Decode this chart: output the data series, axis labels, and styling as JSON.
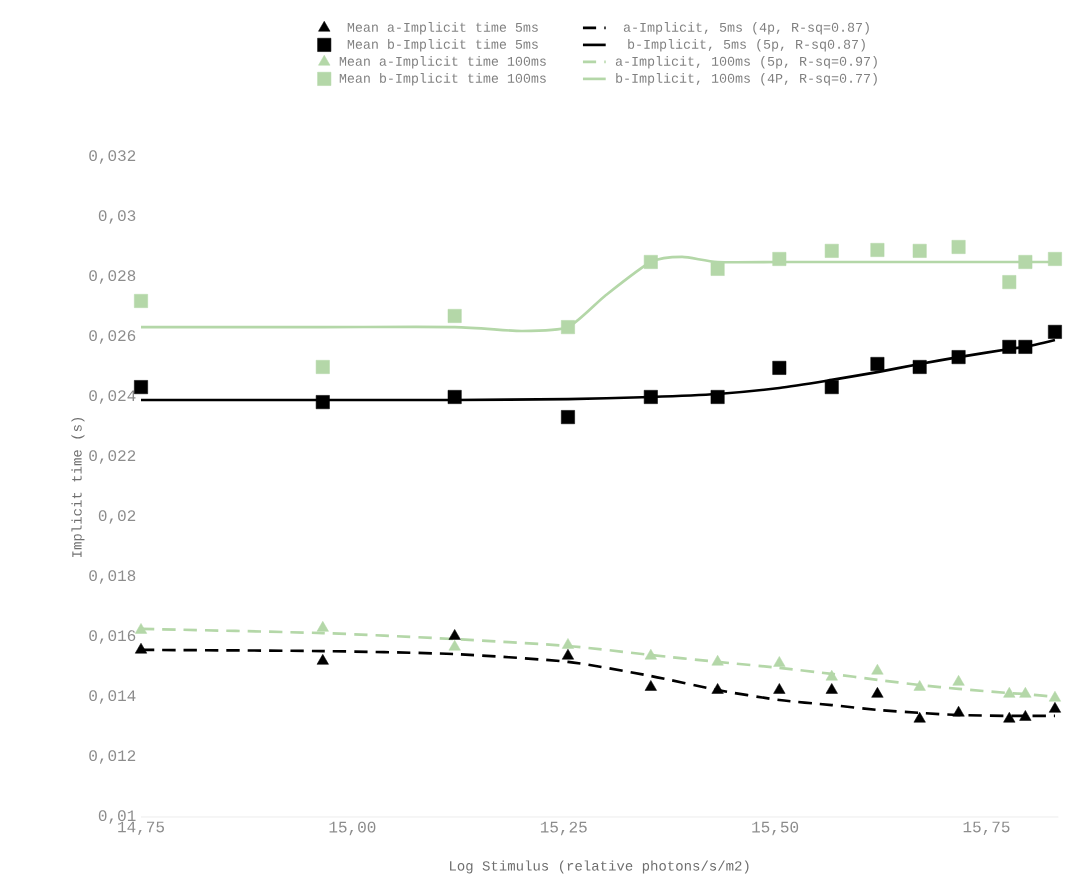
{
  "chart_data": {
    "type": "scatter",
    "xlabel": "Log Stimulus (relative photons/s/m2)",
    "ylabel": "Implicit time (s)",
    "x": [
      14.75,
      14.965,
      15.121,
      15.255,
      15.353,
      15.432,
      15.505,
      15.567,
      15.621,
      15.671,
      15.717,
      15.777,
      15.796,
      15.831
    ],
    "xlim": [
      14.75,
      15.835
    ],
    "ylim": [
      0.01,
      0.032
    ],
    "xticks": [
      {
        "value": 14.75,
        "label": "14,75"
      },
      {
        "value": 15.0,
        "label": "15,00"
      },
      {
        "value": 15.25,
        "label": "15,25"
      },
      {
        "value": 15.5,
        "label": "15,50"
      },
      {
        "value": 15.75,
        "label": "15,75"
      }
    ],
    "yticks": [
      {
        "value": 0.01,
        "label": "0,01"
      },
      {
        "value": 0.012,
        "label": "0,012"
      },
      {
        "value": 0.014,
        "label": "0,014"
      },
      {
        "value": 0.016,
        "label": "0,016"
      },
      {
        "value": 0.018,
        "label": "0,018"
      },
      {
        "value": 0.02,
        "label": "0,02"
      },
      {
        "value": 0.022,
        "label": "0,022"
      },
      {
        "value": 0.024,
        "label": "0,024"
      },
      {
        "value": 0.026,
        "label": "0,026"
      },
      {
        "value": 0.028,
        "label": "0,028"
      },
      {
        "value": 0.03,
        "label": "0,03"
      },
      {
        "value": 0.032,
        "label": "0,032"
      }
    ],
    "grid": false,
    "legend": "top",
    "series": [
      {
        "name": "Mean a-Implicit time 5ms",
        "marker": "triangle",
        "color": "#000000",
        "values": [
          0.01557,
          0.0152,
          0.01603,
          0.01537,
          0.01433,
          0.01423,
          0.01423,
          0.01423,
          0.0141,
          0.01327,
          0.01347,
          0.01327,
          0.01333,
          0.0136
        ]
      },
      {
        "name": "a-Implicit, 5ms (4p, R-sq=0.87)",
        "type": "line",
        "line_style": "dashed",
        "color": "#000000",
        "values": [
          0.01557,
          0.01553,
          0.01543,
          0.01517,
          0.0147,
          0.01423,
          0.0139,
          0.01373,
          0.01357,
          0.01347,
          0.0134,
          0.01337,
          0.01337,
          0.01337
        ]
      },
      {
        "name": "Mean b-Implicit time 5ms",
        "marker": "square",
        "color": "#000000",
        "values": [
          0.02433,
          0.02383,
          0.024,
          0.02333,
          0.024,
          0.024,
          0.02497,
          0.02433,
          0.0251,
          0.025,
          0.02533,
          0.02567,
          0.02567,
          0.02617
        ]
      },
      {
        "name": "b-Implicit, 5ms (5p, R-sq0.87)",
        "type": "line",
        "line_style": "solid",
        "color": "#000000",
        "values": [
          0.0239,
          0.0239,
          0.0239,
          0.02393,
          0.024,
          0.0241,
          0.0243,
          0.02457,
          0.02483,
          0.0251,
          0.02533,
          0.0256,
          0.02567,
          0.0259
        ]
      },
      {
        "name": "Mean a-Implicit time 100ms",
        "marker": "triangle",
        "color": "#b4d7a8",
        "values": [
          0.01623,
          0.0163,
          0.01567,
          0.01573,
          0.01537,
          0.01517,
          0.01513,
          0.01467,
          0.01487,
          0.01433,
          0.0145,
          0.0141,
          0.0141,
          0.01397
        ]
      },
      {
        "name": "a-Implicit, 100ms (5p, R-sq=0.97)",
        "type": "line",
        "line_style": "dashed",
        "color": "#b4d7a8",
        "values": [
          0.01627,
          0.01613,
          0.01593,
          0.0157,
          0.0154,
          0.01517,
          0.01497,
          0.01477,
          0.01457,
          0.0144,
          0.01427,
          0.01413,
          0.0141,
          0.014
        ]
      },
      {
        "name": "Mean b-Implicit time 100ms",
        "marker": "square",
        "color": "#b4d7a8",
        "values": [
          0.0272,
          0.025,
          0.0267,
          0.02633,
          0.0285,
          0.02827,
          0.0286,
          0.02887,
          0.0289,
          0.02887,
          0.029,
          0.02783,
          0.0285,
          0.0286
        ]
      },
      {
        "name": "b-Implicit, 100ms (4P, R-sq=0.77)",
        "type": "line",
        "line_style": "solid",
        "color": "#b4d7a8",
        "x": [
          14.75,
          14.965,
          15.121,
          15.2,
          15.255,
          15.3,
          15.353,
          15.39,
          15.432,
          15.505,
          15.567,
          15.621,
          15.671,
          15.717,
          15.777,
          15.831
        ],
        "values": [
          0.02633,
          0.02633,
          0.02633,
          0.0262,
          0.02633,
          0.0274,
          0.0285,
          0.02867,
          0.0285,
          0.0285,
          0.0285,
          0.0285,
          0.0285,
          0.0285,
          0.0285,
          0.0285
        ]
      }
    ]
  }
}
